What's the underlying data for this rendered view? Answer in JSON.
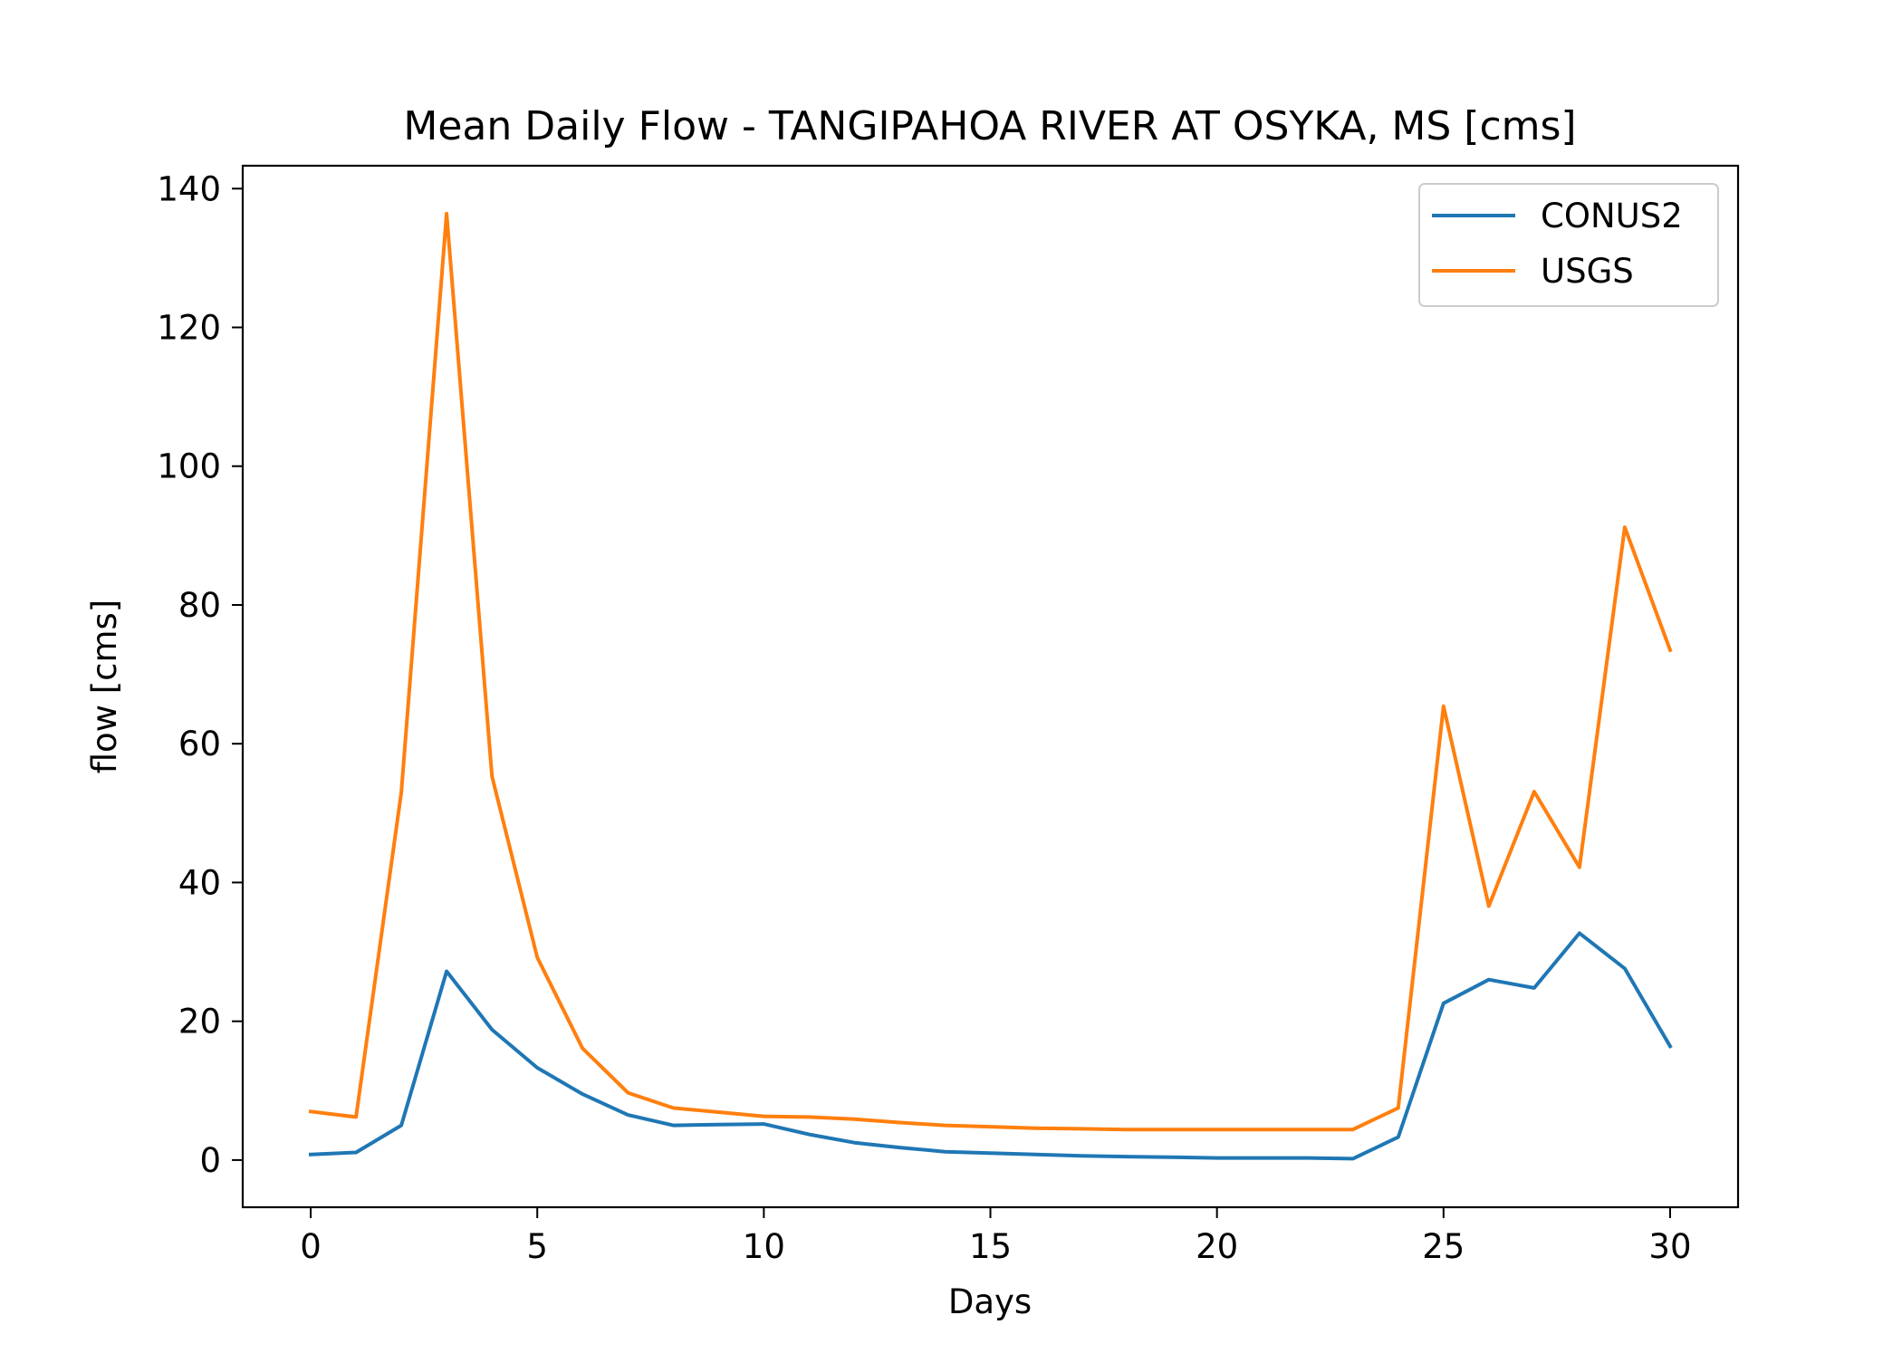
{
  "chart_data": {
    "type": "line",
    "title": "Mean Daily Flow - TANGIPAHOA RIVER AT OSYKA, MS [cms]",
    "xlabel": "Days",
    "ylabel": "flow [cms]",
    "xlim": [
      -1.5,
      31.5
    ],
    "ylim": [
      -6.8,
      143.3
    ],
    "xticks": [
      0,
      5,
      10,
      15,
      20,
      25,
      30
    ],
    "yticks": [
      0,
      20,
      40,
      60,
      80,
      100,
      120,
      140
    ],
    "grid": false,
    "legend_position": "top-right",
    "x": [
      0,
      1,
      2,
      3,
      4,
      5,
      6,
      7,
      8,
      9,
      10,
      11,
      12,
      13,
      14,
      15,
      16,
      17,
      18,
      19,
      20,
      21,
      22,
      23,
      24,
      25,
      26,
      27,
      28,
      29,
      30
    ],
    "series": [
      {
        "name": "CONUS2",
        "color": "#1f77b4",
        "values": [
          0.8,
          1.1,
          5.0,
          27.2,
          18.8,
          13.3,
          9.5,
          6.5,
          5.0,
          5.1,
          5.2,
          3.7,
          2.5,
          1.8,
          1.2,
          1.0,
          0.8,
          0.6,
          0.5,
          0.4,
          0.3,
          0.3,
          0.3,
          0.2,
          3.3,
          22.6,
          26.0,
          24.8,
          32.7,
          27.6,
          16.4
        ]
      },
      {
        "name": "USGS",
        "color": "#ff7f0e",
        "values": [
          7.0,
          6.2,
          53.0,
          136.4,
          55.3,
          29.2,
          16.1,
          9.7,
          7.5,
          6.9,
          6.3,
          6.2,
          5.9,
          5.4,
          5.0,
          4.8,
          4.6,
          4.5,
          4.4,
          4.4,
          4.4,
          4.4,
          4.4,
          4.4,
          7.5,
          65.4,
          36.6,
          53.1,
          42.2,
          91.2,
          73.5
        ]
      }
    ]
  }
}
